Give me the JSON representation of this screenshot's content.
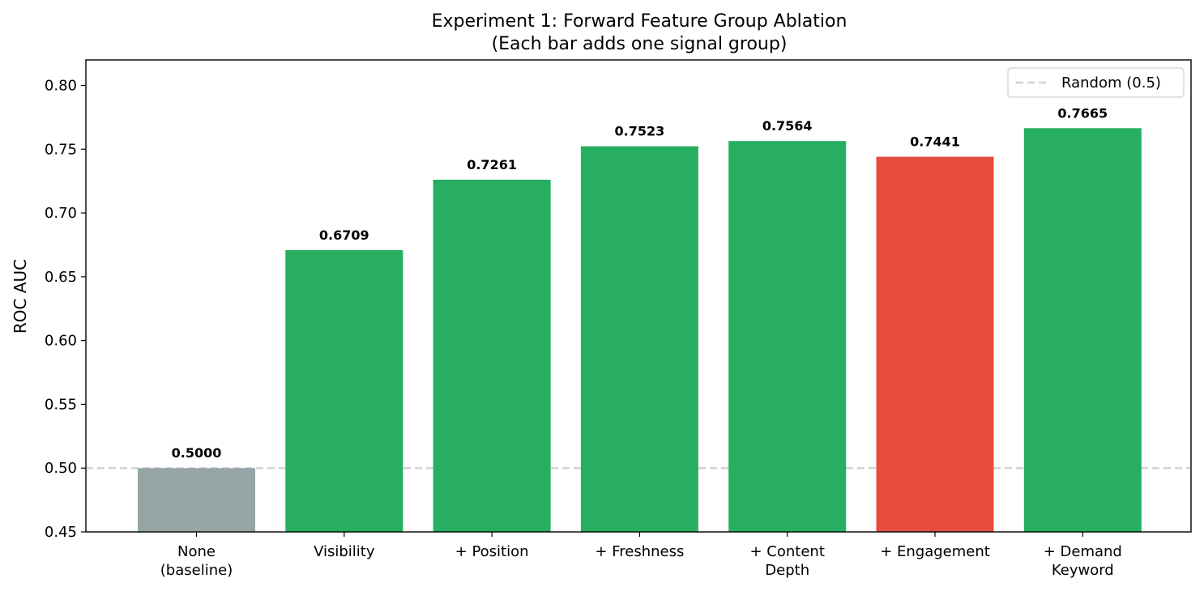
{
  "chart_data": {
    "type": "bar",
    "title": "Experiment 1: Forward Feature Group Ablation",
    "subtitle": "(Each bar adds one signal group)",
    "xlabel": "",
    "ylabel": "ROC AUC",
    "ylim": [
      0.45,
      0.82
    ],
    "yticks": [
      "0.45",
      "0.50",
      "0.55",
      "0.60",
      "0.65",
      "0.70",
      "0.75",
      "0.80"
    ],
    "ytick_values": [
      0.45,
      0.5,
      0.55,
      0.6,
      0.65,
      0.7,
      0.75,
      0.8
    ],
    "categories": [
      [
        "None",
        "(baseline)"
      ],
      [
        "Visibility"
      ],
      [
        "+ Position"
      ],
      [
        "+ Freshness"
      ],
      [
        "+ Content",
        "Depth"
      ],
      [
        "+ Engagement"
      ],
      [
        "+ Demand",
        "Keyword"
      ]
    ],
    "values": [
      0.5,
      0.6709,
      0.7261,
      0.7523,
      0.7564,
      0.7441,
      0.7665
    ],
    "value_labels": [
      "0.5000",
      "0.6709",
      "0.7261",
      "0.7523",
      "0.7564",
      "0.7441",
      "0.7665"
    ],
    "bar_colors": [
      "#95a5a6",
      "#27ae60",
      "#27ae60",
      "#27ae60",
      "#27ae60",
      "#e74c3c",
      "#27ae60"
    ],
    "reference_line": {
      "y": 0.5,
      "label": "Random (0.5)",
      "color": "#d3d3d3",
      "style": "dashed"
    },
    "legend_position": "top-right",
    "grid": false
  }
}
